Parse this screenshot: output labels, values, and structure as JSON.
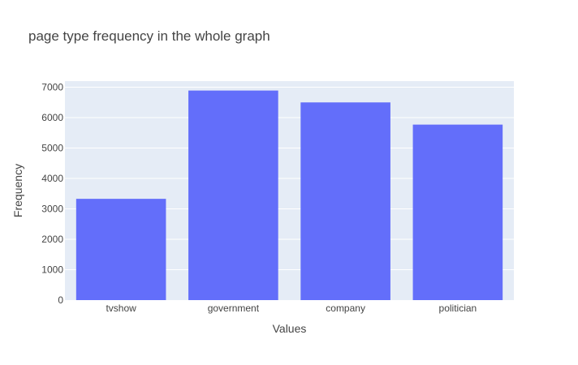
{
  "chart_data": {
    "type": "bar",
    "title": "page type frequency in the whole graph",
    "xlabel": "Values",
    "ylabel": "Frequency",
    "categories": [
      "tvshow",
      "government",
      "company",
      "politician"
    ],
    "values": [
      3330,
      6890,
      6500,
      5770
    ],
    "ylim": [
      0,
      7200
    ],
    "yticks": [
      0,
      1000,
      2000,
      3000,
      4000,
      5000,
      6000,
      7000
    ],
    "ytick_labels": [
      "0",
      "1000",
      "2000",
      "3000",
      "4000",
      "5000",
      "6000",
      "7000"
    ],
    "grid": true,
    "legend": false,
    "colors": {
      "bar": "#636efa",
      "plot_background": "#e5ecf6",
      "gridline": "#ffffff",
      "text": "#444444"
    }
  }
}
